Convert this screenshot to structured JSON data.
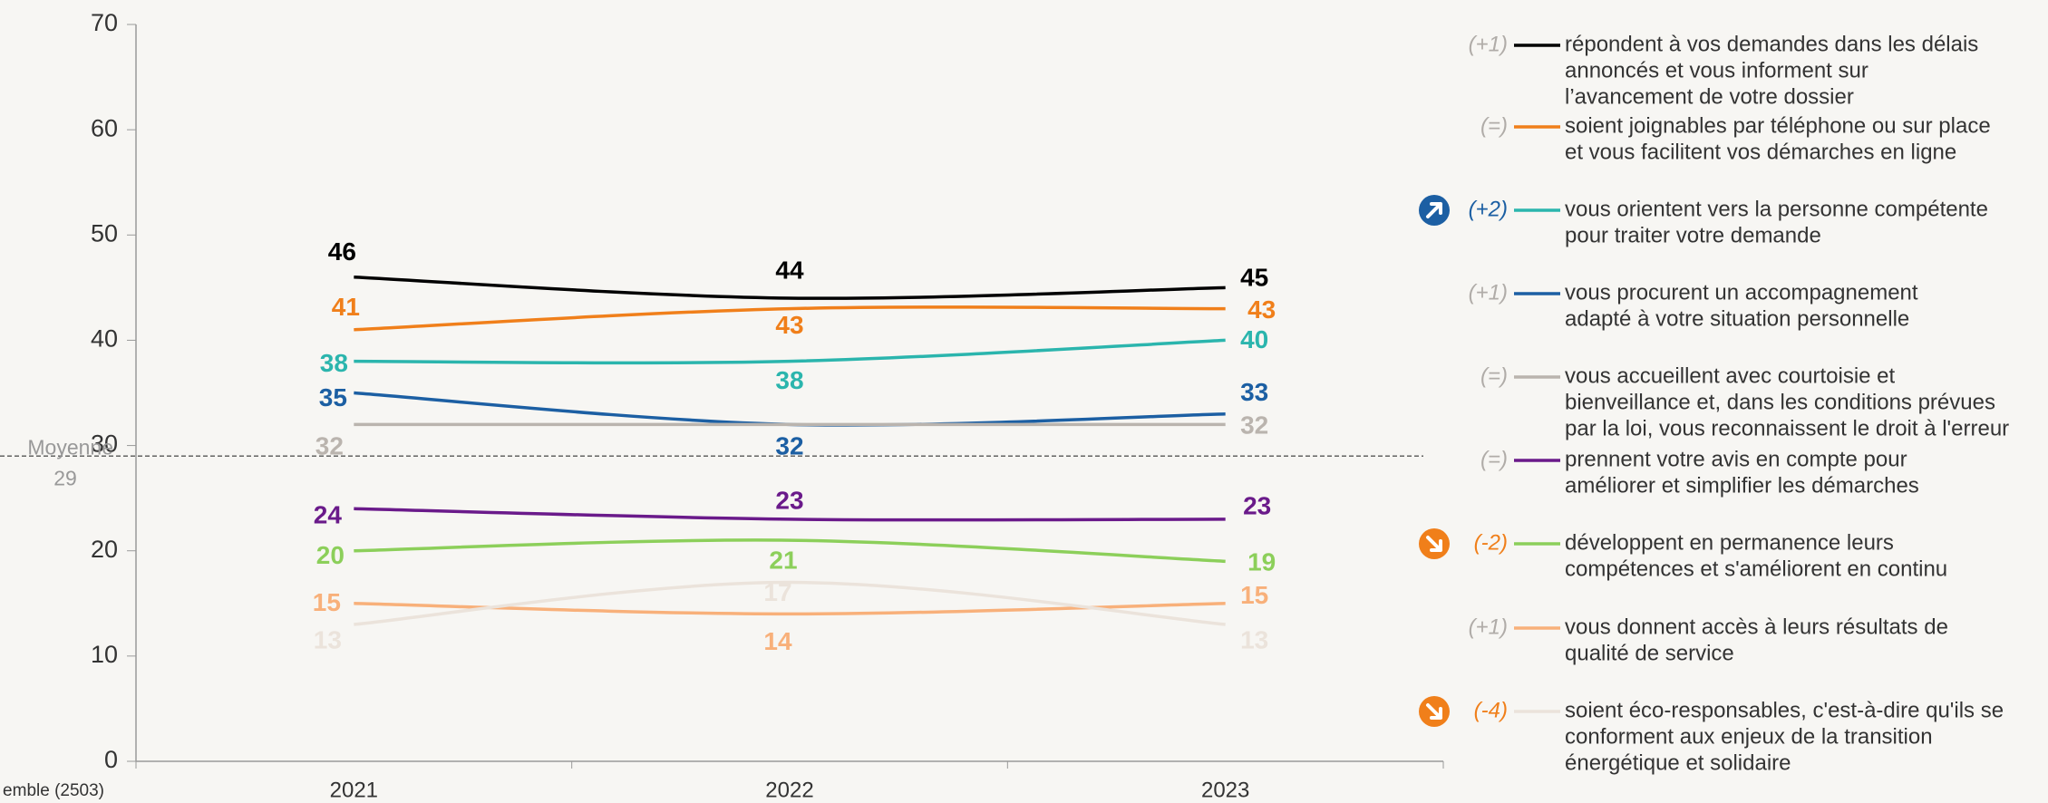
{
  "chart_data": {
    "type": "line",
    "categories": [
      "2021",
      "2022",
      "2023"
    ],
    "ylim": [
      0,
      70
    ],
    "yticks": [
      0,
      10,
      20,
      30,
      40,
      50,
      60,
      70
    ],
    "average": {
      "label": "Moyenne",
      "value": 29
    },
    "base_label": "emble (2503)",
    "series": [
      {
        "name": [
          "répondent à vos demandes dans les délais",
          "annoncés et vous informent sur",
          "l’avancement de votre dossier"
        ],
        "color": "#000000",
        "values": [
          46,
          44,
          45
        ],
        "change": "(+1)",
        "change_color": "#b0aca8"
      },
      {
        "name": [
          "soient joignables par téléphone ou sur place",
          "et vous facilitent vos démarches en ligne"
        ],
        "color": "#f07f1a",
        "values": [
          41,
          43,
          43
        ],
        "change": "(=)",
        "change_color": "#b0aca8"
      },
      {
        "name": [
          "vous orientent vers la personne compétente",
          "pour traiter votre demande"
        ],
        "color": "#2bb5ad",
        "values": [
          38,
          38,
          40
        ],
        "change": "(+2)",
        "change_color": "#1c5fa3",
        "icon": "up"
      },
      {
        "name": [
          "vous procurent un accompagnement",
          "adapté à votre situation personnelle"
        ],
        "color": "#1c5fa3",
        "values": [
          35,
          32,
          33
        ],
        "change": "(+1)",
        "change_color": "#b0aca8"
      },
      {
        "name": [
          "vous accueillent avec courtoisie et",
          "bienveillance et, dans les conditions prévues",
          "par la loi, vous reconnaissent le droit à l'erreur"
        ],
        "color": "#bab4ae",
        "values": [
          32,
          32,
          32
        ],
        "change": "(=)",
        "change_color": "#b0aca8",
        "hidden_labels": [
          1
        ]
      },
      {
        "name": [
          "prennent votre avis en compte pour",
          "améliorer et simplifier les démarches"
        ],
        "color": "#6a1a8a",
        "values": [
          24,
          23,
          23
        ],
        "change": "(=)",
        "change_color": "#b0aca8"
      },
      {
        "name": [
          "développent en permanence leurs",
          "compétences et s'améliorent en continu"
        ],
        "color": "#8ccf5a",
        "values": [
          20,
          21,
          19
        ],
        "change": "(-2)",
        "change_color": "#f07f1a",
        "icon": "down"
      },
      {
        "name": [
          "vous donnent accès à leurs résultats de",
          "qualité de service"
        ],
        "color": "#f8b07a",
        "values": [
          15,
          14,
          15
        ],
        "change": "(+1)",
        "change_color": "#b0aca8"
      },
      {
        "name": [
          "soient éco-responsables, c'est-à-dire qu'ils se",
          "conforment aux enjeux de la transition",
          "énergétique et solidaire"
        ],
        "color": "#ebe3db",
        "values": [
          13,
          17,
          13
        ],
        "change": "(-4)",
        "change_color": "#f07f1a",
        "icon": "down"
      }
    ]
  }
}
